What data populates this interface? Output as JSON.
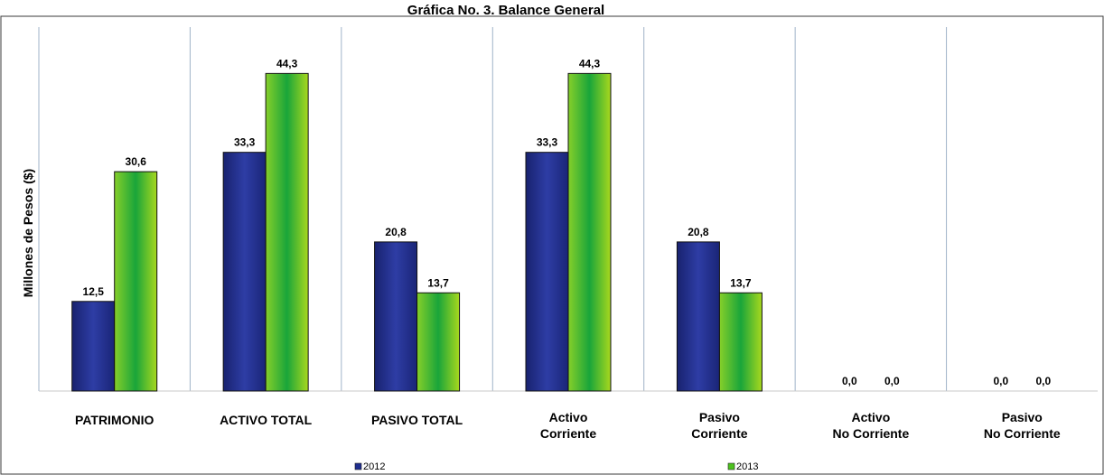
{
  "chart_data": {
    "type": "bar",
    "title": "Gráfica No. 3. Balance General",
    "ylabel": "Millones de Pesos ($)",
    "xlabel": "",
    "categories": [
      [
        "PATRIMONIO"
      ],
      [
        "ACTIVO TOTAL"
      ],
      [
        "PASIVO TOTAL"
      ],
      [
        "Activo",
        "Corriente"
      ],
      [
        "Pasivo",
        "Corriente"
      ],
      [
        "Activo",
        "No Corriente"
      ],
      [
        "Pasivo",
        "No Corriente"
      ]
    ],
    "series": [
      {
        "name": "2012",
        "color": "#1f2f8f",
        "values": [
          12.5,
          33.3,
          20.8,
          33.3,
          20.8,
          0.0,
          0.0
        ],
        "labels": [
          "12,5",
          "33,3",
          "20,8",
          "33,3",
          "20,8",
          "0,0",
          "0,0"
        ]
      },
      {
        "name": "2013",
        "color": "#4cc21e",
        "values": [
          30.6,
          44.3,
          13.7,
          44.3,
          13.7,
          0.0,
          0.0
        ],
        "labels": [
          "30,6",
          "44,3",
          "13,7",
          "44,3",
          "13,7",
          "0,0",
          "0,0"
        ]
      }
    ],
    "ylim": [
      0,
      48
    ],
    "grid": false,
    "legend_position": "bottom"
  }
}
